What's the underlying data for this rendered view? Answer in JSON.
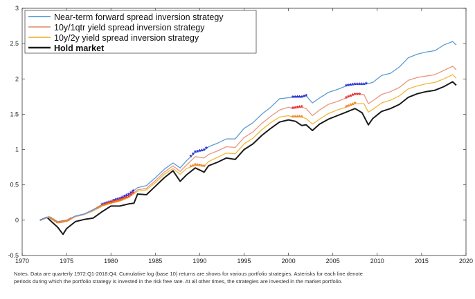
{
  "chart_data": {
    "type": "line",
    "title": "",
    "xlabel": "",
    "ylabel": "",
    "xlim": [
      1970,
      2020
    ],
    "ylim": [
      -0.5,
      3
    ],
    "grid": false,
    "legend_position": "top-left",
    "x_ticks": [
      "1970",
      "1975",
      "1980",
      "1985",
      "1990",
      "1995",
      "2000",
      "2005",
      "2010",
      "2015",
      "2020"
    ],
    "y_ticks": [
      "-0.5",
      "0",
      "0.5",
      "1",
      "1.5",
      "2",
      "2.5",
      "3"
    ],
    "series": [
      {
        "name": "Near-term forward spread inversion strategy",
        "color": "#5b9bd5",
        "asterisk_color": "#1f1fd6",
        "points": [
          [
            1972.0,
            0.0
          ],
          [
            1973.0,
            0.05
          ],
          [
            1974.0,
            -0.02
          ],
          [
            1975.0,
            0.0
          ],
          [
            1976.0,
            0.06
          ],
          [
            1977.0,
            0.09
          ],
          [
            1978.0,
            0.15
          ],
          [
            1979.0,
            0.22
          ],
          [
            1980.0,
            0.26
          ],
          [
            1981.0,
            0.3
          ],
          [
            1982.0,
            0.36
          ],
          [
            1983.0,
            0.46
          ],
          [
            1984.0,
            0.49
          ],
          [
            1985.0,
            0.6
          ],
          [
            1986.0,
            0.72
          ],
          [
            1987.0,
            0.81
          ],
          [
            1987.8,
            0.74
          ],
          [
            1988.5,
            0.84
          ],
          [
            1989.5,
            0.96
          ],
          [
            1990.5,
            0.99
          ],
          [
            1991.0,
            1.04
          ],
          [
            1992.0,
            1.09
          ],
          [
            1993.0,
            1.15
          ],
          [
            1994.0,
            1.15
          ],
          [
            1995.0,
            1.3
          ],
          [
            1996.0,
            1.38
          ],
          [
            1997.0,
            1.5
          ],
          [
            1998.0,
            1.6
          ],
          [
            1999.0,
            1.72
          ],
          [
            2000.5,
            1.74
          ],
          [
            2001.5,
            1.74
          ],
          [
            2002.0,
            1.76
          ],
          [
            2002.7,
            1.66
          ],
          [
            2003.5,
            1.73
          ],
          [
            2004.5,
            1.81
          ],
          [
            2005.5,
            1.85
          ],
          [
            2006.5,
            1.9
          ],
          [
            2007.5,
            1.92
          ],
          [
            2008.5,
            1.92
          ],
          [
            2009.5,
            1.95
          ],
          [
            2010.5,
            2.05
          ],
          [
            2011.5,
            2.08
          ],
          [
            2012.5,
            2.17
          ],
          [
            2013.5,
            2.3
          ],
          [
            2014.5,
            2.35
          ],
          [
            2015.5,
            2.38
          ],
          [
            2016.5,
            2.4
          ],
          [
            2017.5,
            2.48
          ],
          [
            2018.5,
            2.53
          ],
          [
            2018.9,
            2.48
          ]
        ],
        "asterisk_periods": [
          [
            1979.0,
            1982.5
          ],
          [
            1989.0,
            1990.8
          ],
          [
            2000.5,
            2002.0
          ],
          [
            2006.5,
            2008.8
          ]
        ]
      },
      {
        "name": "10y/1qtr yield spread inversion strategy",
        "color": "#e9967a",
        "asterisk_color": "#e8202a",
        "points": [
          [
            1972.0,
            0.0
          ],
          [
            1973.0,
            0.04
          ],
          [
            1974.0,
            -0.04
          ],
          [
            1975.0,
            -0.02
          ],
          [
            1976.0,
            0.05
          ],
          [
            1977.0,
            0.08
          ],
          [
            1978.0,
            0.14
          ],
          [
            1979.0,
            0.21
          ],
          [
            1980.0,
            0.25
          ],
          [
            1981.0,
            0.28
          ],
          [
            1982.0,
            0.33
          ],
          [
            1983.0,
            0.43
          ],
          [
            1984.0,
            0.45
          ],
          [
            1985.0,
            0.56
          ],
          [
            1986.0,
            0.68
          ],
          [
            1987.0,
            0.77
          ],
          [
            1987.8,
            0.69
          ],
          [
            1988.5,
            0.78
          ],
          [
            1989.5,
            0.9
          ],
          [
            1990.5,
            0.88
          ],
          [
            1991.0,
            0.93
          ],
          [
            1992.0,
            0.98
          ],
          [
            1993.0,
            1.04
          ],
          [
            1994.0,
            1.03
          ],
          [
            1995.0,
            1.17
          ],
          [
            1996.0,
            1.25
          ],
          [
            1997.0,
            1.37
          ],
          [
            1998.0,
            1.47
          ],
          [
            1999.0,
            1.56
          ],
          [
            2000.0,
            1.6
          ],
          [
            2000.5,
            1.58
          ],
          [
            2001.5,
            1.6
          ],
          [
            2002.0,
            1.58
          ],
          [
            2002.7,
            1.48
          ],
          [
            2003.5,
            1.56
          ],
          [
            2004.5,
            1.64
          ],
          [
            2005.5,
            1.68
          ],
          [
            2006.5,
            1.73
          ],
          [
            2007.5,
            1.78
          ],
          [
            2008.5,
            1.78
          ],
          [
            2009.0,
            1.65
          ],
          [
            2009.5,
            1.69
          ],
          [
            2010.5,
            1.78
          ],
          [
            2011.5,
            1.82
          ],
          [
            2012.5,
            1.88
          ],
          [
            2013.5,
            1.98
          ],
          [
            2014.5,
            2.02
          ],
          [
            2015.5,
            2.04
          ],
          [
            2016.5,
            2.06
          ],
          [
            2017.5,
            2.12
          ],
          [
            2018.5,
            2.18
          ],
          [
            2018.9,
            2.13
          ]
        ],
        "asterisk_periods": [
          [
            1979.5,
            1982.5
          ],
          [
            2000.5,
            2001.7
          ],
          [
            2006.5,
            2008.0
          ]
        ]
      },
      {
        "name": "10y/2y yield spread inversion strategy",
        "color": "#f2b53b",
        "asterisk_color": "#f07c1c",
        "points": [
          [
            1972.0,
            0.0
          ],
          [
            1973.0,
            0.04
          ],
          [
            1974.0,
            -0.04
          ],
          [
            1975.0,
            -0.02
          ],
          [
            1976.0,
            0.05
          ],
          [
            1977.0,
            0.08
          ],
          [
            1978.0,
            0.13
          ],
          [
            1979.0,
            0.2
          ],
          [
            1980.0,
            0.24
          ],
          [
            1981.0,
            0.27
          ],
          [
            1982.0,
            0.32
          ],
          [
            1983.0,
            0.41
          ],
          [
            1984.0,
            0.43
          ],
          [
            1985.0,
            0.53
          ],
          [
            1986.0,
            0.65
          ],
          [
            1987.0,
            0.73
          ],
          [
            1987.8,
            0.65
          ],
          [
            1988.5,
            0.73
          ],
          [
            1989.5,
            0.78
          ],
          [
            1990.5,
            0.76
          ],
          [
            1991.0,
            0.83
          ],
          [
            1992.0,
            0.89
          ],
          [
            1993.0,
            0.95
          ],
          [
            1994.0,
            0.94
          ],
          [
            1995.0,
            1.08
          ],
          [
            1996.0,
            1.16
          ],
          [
            1997.0,
            1.28
          ],
          [
            1998.0,
            1.38
          ],
          [
            1999.0,
            1.46
          ],
          [
            2000.0,
            1.48
          ],
          [
            2000.5,
            1.46
          ],
          [
            2001.5,
            1.46
          ],
          [
            2002.0,
            1.44
          ],
          [
            2002.7,
            1.36
          ],
          [
            2003.5,
            1.43
          ],
          [
            2004.5,
            1.51
          ],
          [
            2005.5,
            1.56
          ],
          [
            2006.5,
            1.6
          ],
          [
            2007.5,
            1.65
          ],
          [
            2008.5,
            1.65
          ],
          [
            2009.0,
            1.53
          ],
          [
            2009.5,
            1.57
          ],
          [
            2010.5,
            1.66
          ],
          [
            2011.5,
            1.7
          ],
          [
            2012.5,
            1.76
          ],
          [
            2013.5,
            1.86
          ],
          [
            2014.5,
            1.9
          ],
          [
            2015.5,
            1.93
          ],
          [
            2016.5,
            1.95
          ],
          [
            2017.5,
            2.0
          ],
          [
            2018.5,
            2.06
          ],
          [
            2018.9,
            2.01
          ]
        ],
        "asterisk_periods": [
          [
            1973.2,
            1975.5
          ],
          [
            1978.5,
            1981.5
          ],
          [
            1989.0,
            1990.5
          ],
          [
            2000.5,
            2001.5
          ],
          [
            2006.5,
            2007.7
          ]
        ]
      },
      {
        "name": "Hold market",
        "color": "#1a1a1a",
        "asterisk_color": "",
        "points": [
          [
            1972.0,
            0.0
          ],
          [
            1972.8,
            0.04
          ],
          [
            1973.3,
            -0.02
          ],
          [
            1974.0,
            -0.1
          ],
          [
            1974.6,
            -0.2
          ],
          [
            1975.0,
            -0.12
          ],
          [
            1976.0,
            -0.02
          ],
          [
            1977.0,
            0.01
          ],
          [
            1978.0,
            0.03
          ],
          [
            1979.0,
            0.12
          ],
          [
            1980.0,
            0.2
          ],
          [
            1981.0,
            0.2
          ],
          [
            1982.0,
            0.23
          ],
          [
            1982.6,
            0.24
          ],
          [
            1983.0,
            0.37
          ],
          [
            1984.0,
            0.36
          ],
          [
            1985.0,
            0.48
          ],
          [
            1986.0,
            0.6
          ],
          [
            1987.0,
            0.7
          ],
          [
            1987.8,
            0.55
          ],
          [
            1988.5,
            0.64
          ],
          [
            1989.5,
            0.74
          ],
          [
            1990.5,
            0.68
          ],
          [
            1991.0,
            0.77
          ],
          [
            1992.0,
            0.82
          ],
          [
            1993.0,
            0.88
          ],
          [
            1994.0,
            0.86
          ],
          [
            1995.0,
            1.0
          ],
          [
            1996.0,
            1.08
          ],
          [
            1997.0,
            1.2
          ],
          [
            1998.0,
            1.3
          ],
          [
            1999.0,
            1.39
          ],
          [
            2000.0,
            1.42
          ],
          [
            2000.8,
            1.4
          ],
          [
            2001.5,
            1.34
          ],
          [
            2002.0,
            1.35
          ],
          [
            2002.7,
            1.27
          ],
          [
            2003.5,
            1.36
          ],
          [
            2004.5,
            1.43
          ],
          [
            2005.5,
            1.48
          ],
          [
            2006.5,
            1.53
          ],
          [
            2007.5,
            1.58
          ],
          [
            2008.3,
            1.52
          ],
          [
            2009.0,
            1.35
          ],
          [
            2009.5,
            1.44
          ],
          [
            2010.5,
            1.54
          ],
          [
            2011.5,
            1.58
          ],
          [
            2012.5,
            1.64
          ],
          [
            2013.5,
            1.74
          ],
          [
            2014.5,
            1.79
          ],
          [
            2015.5,
            1.82
          ],
          [
            2016.5,
            1.84
          ],
          [
            2017.5,
            1.89
          ],
          [
            2018.5,
            1.96
          ],
          [
            2018.9,
            1.91
          ]
        ],
        "asterisk_periods": []
      }
    ]
  },
  "notes": {
    "line1": "Notes.  Data are quarterly 1972:Q1-2018:Q4.  Cumulative log (base 10) returns are shows for various portfolio strategies.  Asterisks for each line denote",
    "line2": "periods during which the portfolio strategy is invested in the risk free rate.  At all other times, the strategies are invested in the market portfolio."
  }
}
